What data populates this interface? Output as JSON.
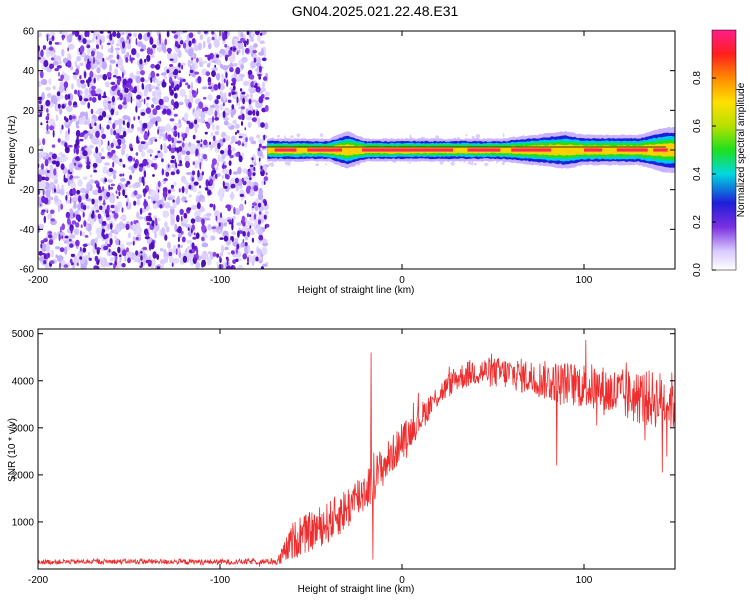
{
  "title": "GN04.2025.021.22.48.E31",
  "colors": {
    "snr_line": "#ee2e2e",
    "noise_points": "#7a2fe0",
    "ridge_core": "#ff2a55",
    "background": "#ffffff"
  },
  "chart_data": [
    {
      "type": "heatmap",
      "name": "spectrogram",
      "xlabel": "Height of straight line (km)",
      "ylabel": "Frequency (Hz)",
      "xlim": [
        -200,
        150
      ],
      "ylim": [
        -60,
        60
      ],
      "xticks": [
        -200,
        -100,
        0,
        100
      ],
      "yticks": [
        -60,
        -40,
        -20,
        0,
        20,
        40,
        60
      ],
      "colorbar": {
        "label": "Normalized spectral amplitude",
        "range": [
          0,
          1
        ],
        "ticks": [
          0.0,
          0.2,
          0.4,
          0.6,
          0.8
        ]
      },
      "regions": {
        "noise_x_range": [
          -200,
          -74
        ],
        "noise_level": 0.15,
        "signal_start_x": -74,
        "signal_center_freq_hz": 0,
        "signal_halfwidth_hz": 4
      },
      "ridge_profile": [
        {
          "x": -74,
          "halfwidth_hz": 3
        },
        {
          "x": -40,
          "halfwidth_hz": 3
        },
        {
          "x": -30,
          "halfwidth_hz": 5
        },
        {
          "x": -20,
          "halfwidth_hz": 3
        },
        {
          "x": 30,
          "halfwidth_hz": 3
        },
        {
          "x": 55,
          "halfwidth_hz": 3
        },
        {
          "x": 90,
          "halfwidth_hz": 5
        },
        {
          "x": 100,
          "halfwidth_hz": 4
        },
        {
          "x": 130,
          "halfwidth_hz": 4
        },
        {
          "x": 145,
          "halfwidth_hz": 6
        }
      ]
    },
    {
      "type": "line",
      "name": "snr",
      "xlabel": "Height of straight line (km)",
      "ylabel": "SNR (10 * v/v)",
      "xlim": [
        -200,
        150
      ],
      "ylim": [
        0,
        5100
      ],
      "xticks": [
        -200,
        -100,
        0,
        100
      ],
      "yticks": [
        1000,
        2000,
        3000,
        4000,
        5000
      ],
      "trend": [
        {
          "x": -200,
          "y": 150
        },
        {
          "x": -150,
          "y": 160
        },
        {
          "x": -100,
          "y": 150
        },
        {
          "x": -68,
          "y": 160
        },
        {
          "x": -60,
          "y": 600
        },
        {
          "x": -50,
          "y": 800
        },
        {
          "x": -40,
          "y": 1000
        },
        {
          "x": -30,
          "y": 1300
        },
        {
          "x": -20,
          "y": 1700
        },
        {
          "x": -10,
          "y": 2200
        },
        {
          "x": 0,
          "y": 2700
        },
        {
          "x": 10,
          "y": 3200
        },
        {
          "x": 20,
          "y": 3700
        },
        {
          "x": 30,
          "y": 4050
        },
        {
          "x": 40,
          "y": 4200
        },
        {
          "x": 60,
          "y": 4150
        },
        {
          "x": 80,
          "y": 4000
        },
        {
          "x": 100,
          "y": 3900
        },
        {
          "x": 120,
          "y": 3700
        },
        {
          "x": 140,
          "y": 3600
        },
        {
          "x": 150,
          "y": 3550
        }
      ],
      "noise_amplitude": [
        {
          "x": -200,
          "a": 50
        },
        {
          "x": -70,
          "a": 60
        },
        {
          "x": -60,
          "a": 400
        },
        {
          "x": -20,
          "a": 500
        },
        {
          "x": 20,
          "a": 250
        },
        {
          "x": 60,
          "a": 350
        },
        {
          "x": 100,
          "a": 500
        },
        {
          "x": 150,
          "a": 650
        }
      ],
      "spikes": [
        {
          "x": -17,
          "y": 4600
        },
        {
          "x": -16,
          "y": 200
        },
        {
          "x": 85,
          "y": 2200
        },
        {
          "x": 143,
          "y": 2050
        }
      ]
    }
  ]
}
